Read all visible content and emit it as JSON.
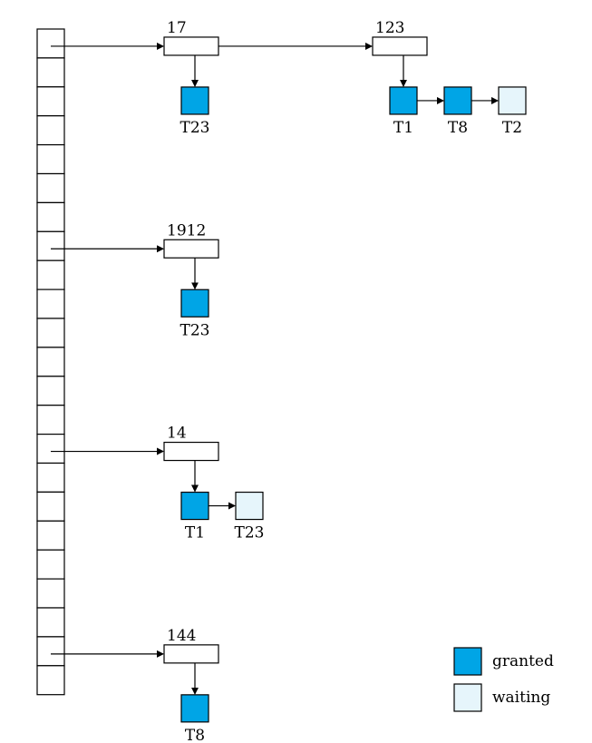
{
  "colors": {
    "granted": "#00A5E6",
    "waiting": "#E6F5FB"
  },
  "lock_table": {
    "buckets": 23,
    "chains": [
      {
        "row": 0,
        "items": [
          {
            "id": "17",
            "requests": [
              {
                "txn": "T23",
                "status": "granted"
              }
            ]
          },
          {
            "id": "123",
            "requests": [
              {
                "txn": "T1",
                "status": "granted"
              },
              {
                "txn": "T8",
                "status": "granted"
              },
              {
                "txn": "T2",
                "status": "waiting"
              }
            ]
          }
        ]
      },
      {
        "row": 7,
        "items": [
          {
            "id": "1912",
            "requests": [
              {
                "txn": "T23",
                "status": "granted"
              }
            ]
          }
        ]
      },
      {
        "row": 14,
        "items": [
          {
            "id": "14",
            "requests": [
              {
                "txn": "T1",
                "status": "granted"
              },
              {
                "txn": "T23",
                "status": "waiting"
              }
            ]
          }
        ]
      },
      {
        "row": 21,
        "items": [
          {
            "id": "144",
            "requests": [
              {
                "txn": "T8",
                "status": "granted"
              }
            ]
          }
        ]
      }
    ]
  },
  "legend": [
    {
      "label": "granted",
      "status": "granted"
    },
    {
      "label": "waiting",
      "status": "waiting"
    }
  ]
}
